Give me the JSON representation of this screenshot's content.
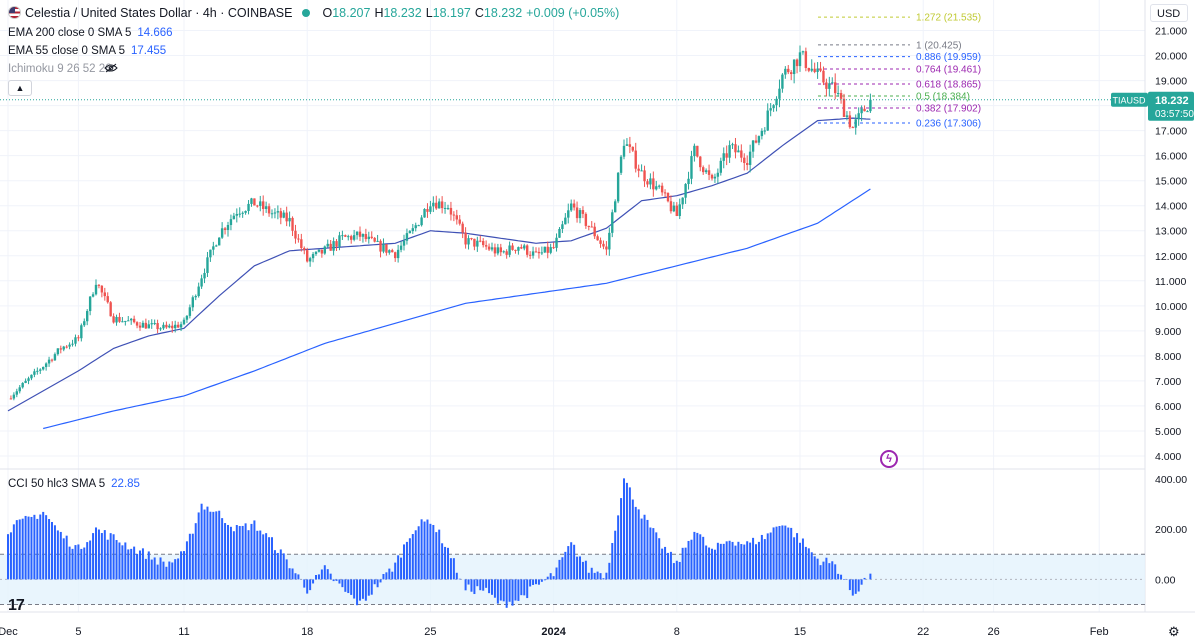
{
  "header": {
    "symbol_title": "Celestia / United States Dollar · 4h · COINBASE",
    "ohlc": {
      "o_label": "O",
      "o": "18.207",
      "h_label": "H",
      "h": "18.232",
      "l_label": "L",
      "l": "18.197",
      "c_label": "C",
      "c": "18.232",
      "change": "+0.009 (+0.05%)"
    },
    "indicators": [
      {
        "label": "EMA 200 close 0 SMA 5",
        "value": "14.666"
      },
      {
        "label": "EMA 55 close 0 SMA 5",
        "value": "17.455"
      },
      {
        "label": "Ichimoku 9 26 52 26",
        "value": ""
      }
    ],
    "cci": {
      "label": "CCI 50 hlc3 SMA 5",
      "value": "22.85"
    },
    "collapse_icon": "chevron-up-icon",
    "visibility_icon": "eye-off-icon"
  },
  "currency_button": "USD",
  "price_tag": {
    "symbol": "TIAUSD",
    "price": "18.232",
    "countdown": "03:57:50"
  },
  "colors": {
    "up": "#26a69a",
    "down": "#ef5350",
    "ema55": "#3f51b5",
    "ema200": "#2962ff",
    "cci": "#2962ff",
    "price": "#26a69a"
  },
  "chart_data": [
    {
      "type": "candlestick",
      "title": "Celestia / United States Dollar · 4h · COINBASE",
      "y_ticks": [
        "4.000",
        "5.000",
        "6.000",
        "7.000",
        "8.000",
        "9.000",
        "10.000",
        "11.000",
        "12.000",
        "13.000",
        "14.000",
        "15.000",
        "16.000",
        "17.000",
        "18.000",
        "19.000",
        "20.000",
        "21.000"
      ],
      "ylim": [
        3.6,
        21.9
      ],
      "x_ticks": [
        {
          "label": "Dec",
          "d": 0
        },
        {
          "label": "5",
          "d": 4
        },
        {
          "label": "11",
          "d": 10
        },
        {
          "label": "18",
          "d": 17
        },
        {
          "label": "25",
          "d": 24
        },
        {
          "label": "2024",
          "d": 31
        },
        {
          "label": "8",
          "d": 38
        },
        {
          "label": "15",
          "d": 45
        },
        {
          "label": "22",
          "d": 52
        },
        {
          "label": "26",
          "d": 56
        },
        {
          "label": "Feb",
          "d": 62
        }
      ],
      "price_path": [
        [
          0,
          6.3
        ],
        [
          2,
          7.6
        ],
        [
          3,
          8.3
        ],
        [
          4,
          8.7
        ],
        [
          5,
          11.0
        ],
        [
          6,
          9.5
        ],
        [
          8,
          9.2
        ],
        [
          9,
          9.1
        ],
        [
          10,
          9.3
        ],
        [
          11,
          11.2
        ],
        [
          12,
          12.9
        ],
        [
          13,
          13.8
        ],
        [
          14,
          14.1
        ],
        [
          15,
          13.7
        ],
        [
          16,
          13.4
        ],
        [
          17,
          11.8
        ],
        [
          18,
          12.2
        ],
        [
          19,
          12.7
        ],
        [
          20,
          12.8
        ],
        [
          21,
          12.4
        ],
        [
          22,
          12.1
        ],
        [
          23,
          13.0
        ],
        [
          24,
          14.2
        ],
        [
          25,
          14.0
        ],
        [
          26,
          12.6
        ],
        [
          27,
          12.4
        ],
        [
          28,
          12.1
        ],
        [
          29,
          12.4
        ],
        [
          30,
          12.0
        ],
        [
          31,
          12.3
        ],
        [
          32,
          14.0
        ],
        [
          33,
          13.2
        ],
        [
          34,
          12.2
        ],
        [
          35,
          16.6
        ],
        [
          36,
          15.3
        ],
        [
          37,
          14.6
        ],
        [
          38,
          13.6
        ],
        [
          39,
          16.2
        ],
        [
          40,
          14.9
        ],
        [
          41,
          16.3
        ],
        [
          42,
          15.9
        ],
        [
          43,
          17.3
        ],
        [
          44,
          19.2
        ],
        [
          45,
          20.0
        ],
        [
          46,
          19.2
        ],
        [
          47,
          18.6
        ],
        [
          48,
          17.1
        ],
        [
          49,
          18.232
        ]
      ],
      "ema55_path": [
        [
          0,
          5.8
        ],
        [
          2,
          6.6
        ],
        [
          4,
          7.4
        ],
        [
          6,
          8.3
        ],
        [
          8,
          8.8
        ],
        [
          10,
          9.1
        ],
        [
          12,
          10.4
        ],
        [
          14,
          11.6
        ],
        [
          16,
          12.2
        ],
        [
          18,
          12.3
        ],
        [
          20,
          12.4
        ],
        [
          22,
          12.5
        ],
        [
          24,
          13.0
        ],
        [
          26,
          12.9
        ],
        [
          28,
          12.7
        ],
        [
          30,
          12.5
        ],
        [
          32,
          12.6
        ],
        [
          34,
          13.1
        ],
        [
          36,
          14.2
        ],
        [
          38,
          14.4
        ],
        [
          40,
          14.8
        ],
        [
          42,
          15.3
        ],
        [
          44,
          16.4
        ],
        [
          46,
          17.4
        ],
        [
          48,
          17.5
        ],
        [
          49,
          17.455
        ]
      ],
      "ema200_path": [
        [
          2,
          5.1
        ],
        [
          6,
          5.8
        ],
        [
          10,
          6.4
        ],
        [
          14,
          7.4
        ],
        [
          18,
          8.5
        ],
        [
          22,
          9.3
        ],
        [
          26,
          10.1
        ],
        [
          30,
          10.5
        ],
        [
          34,
          10.9
        ],
        [
          38,
          11.6
        ],
        [
          42,
          12.3
        ],
        [
          46,
          13.3
        ],
        [
          49,
          14.666
        ]
      ],
      "fibonacci": [
        {
          "label": "1.272 (21.535)",
          "level": 1.272,
          "value": 21.535,
          "color": "#c0ca33"
        },
        {
          "label": "1 (20.425)",
          "level": 1,
          "value": 20.425,
          "color": "#787b86"
        },
        {
          "label": "0.886 (19.959)",
          "level": 0.886,
          "value": 19.959,
          "color": "#2962ff"
        },
        {
          "label": "0.764 (19.461)",
          "level": 0.764,
          "value": 19.461,
          "color": "#9c27b0"
        },
        {
          "label": "0.618 (18.865)",
          "level": 0.618,
          "value": 18.865,
          "color": "#9c27b0"
        },
        {
          "label": "0.5 (18.384)",
          "level": 0.5,
          "value": 18.384,
          "color": "#4caf50"
        },
        {
          "label": "0.382 (17.902)",
          "level": 0.382,
          "value": 17.902,
          "color": "#9c27b0"
        },
        {
          "label": "0.236 (17.306)",
          "level": 0.236,
          "value": 17.306,
          "color": "#2962ff"
        }
      ]
    },
    {
      "type": "bar",
      "title": "CCI 50 hlc3 SMA 5",
      "y_ticks": [
        "400.00",
        "200.00",
        "0.00"
      ],
      "ylim": [
        -130,
        420
      ],
      "band": [
        -100,
        100
      ],
      "cci_path": [
        [
          0,
          200
        ],
        [
          2,
          270
        ],
        [
          3,
          180
        ],
        [
          4,
          120
        ],
        [
          5,
          200
        ],
        [
          7,
          130
        ],
        [
          9,
          60
        ],
        [
          10,
          100
        ],
        [
          11,
          300
        ],
        [
          12,
          260
        ],
        [
          13,
          200
        ],
        [
          14,
          220
        ],
        [
          15,
          150
        ],
        [
          16,
          60
        ],
        [
          17,
          -40
        ],
        [
          18,
          40
        ],
        [
          19,
          -40
        ],
        [
          20,
          -100
        ],
        [
          21,
          -20
        ],
        [
          22,
          60
        ],
        [
          23,
          200
        ],
        [
          24,
          240
        ],
        [
          25,
          120
        ],
        [
          26,
          -40
        ],
        [
          27,
          -40
        ],
        [
          28,
          -100
        ],
        [
          29,
          -80
        ],
        [
          30,
          -30
        ],
        [
          31,
          20
        ],
        [
          32,
          140
        ],
        [
          33,
          40
        ],
        [
          34,
          20
        ],
        [
          35,
          400
        ],
        [
          36,
          260
        ],
        [
          37,
          150
        ],
        [
          38,
          60
        ],
        [
          39,
          200
        ],
        [
          40,
          110
        ],
        [
          41,
          160
        ],
        [
          42,
          140
        ],
        [
          43,
          170
        ],
        [
          44,
          230
        ],
        [
          45,
          160
        ],
        [
          46,
          80
        ],
        [
          47,
          60
        ],
        [
          48,
          -60
        ],
        [
          49,
          22.85
        ]
      ]
    }
  ]
}
